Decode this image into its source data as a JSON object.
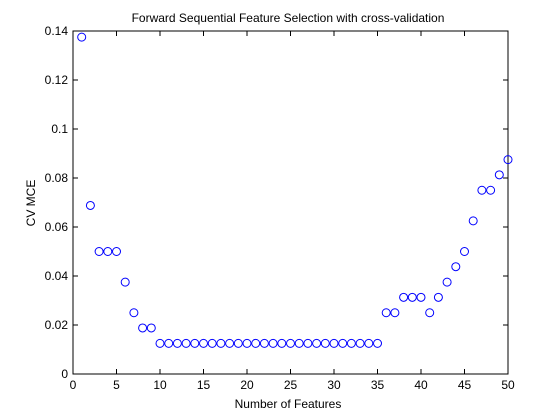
{
  "chart_data": {
    "type": "scatter",
    "title": "Forward Sequential Feature Selection with cross-validation",
    "xlabel": "Number of Features",
    "ylabel": "CV MCE",
    "xlim": [
      0,
      50
    ],
    "ylim": [
      0,
      0.14
    ],
    "xticks": [
      0,
      5,
      10,
      15,
      20,
      25,
      30,
      35,
      40,
      45,
      50
    ],
    "yticks": [
      0,
      0.02,
      0.04,
      0.06,
      0.08,
      0.1,
      0.12,
      0.14
    ],
    "xtick_labels": [
      "0",
      "5",
      "10",
      "15",
      "20",
      "25",
      "30",
      "35",
      "40",
      "45",
      "50"
    ],
    "ytick_labels": [
      "0",
      "0.02",
      "0.04",
      "0.06",
      "0.08",
      "0.1",
      "0.12",
      "0.14"
    ],
    "grid": false,
    "legend": "none",
    "marker": "open-circle",
    "marker_color": "#0000ff",
    "series": [
      {
        "x": [
          1,
          2,
          3,
          4,
          5,
          6,
          7,
          8,
          9,
          10,
          11,
          12,
          13,
          14,
          15,
          16,
          17,
          18,
          19,
          20,
          21,
          22,
          23,
          24,
          25,
          26,
          27,
          28,
          29,
          30,
          31,
          32,
          33,
          34,
          35,
          36,
          37,
          38,
          39,
          40,
          41,
          42,
          43,
          44,
          45,
          46,
          47,
          48,
          49,
          50
        ],
        "y": [
          0.1375,
          0.0688,
          0.05,
          0.05,
          0.05,
          0.0375,
          0.025,
          0.0188,
          0.0188,
          0.0125,
          0.0125,
          0.0125,
          0.0125,
          0.0125,
          0.0125,
          0.0125,
          0.0125,
          0.0125,
          0.0125,
          0.0125,
          0.0125,
          0.0125,
          0.0125,
          0.0125,
          0.0125,
          0.0125,
          0.0125,
          0.0125,
          0.0125,
          0.0125,
          0.0125,
          0.0125,
          0.0125,
          0.0125,
          0.0125,
          0.025,
          0.025,
          0.0313,
          0.0313,
          0.0313,
          0.025,
          0.0313,
          0.0375,
          0.0438,
          0.05,
          0.0625,
          0.075,
          0.075,
          0.0813,
          0.0875
        ]
      }
    ]
  }
}
